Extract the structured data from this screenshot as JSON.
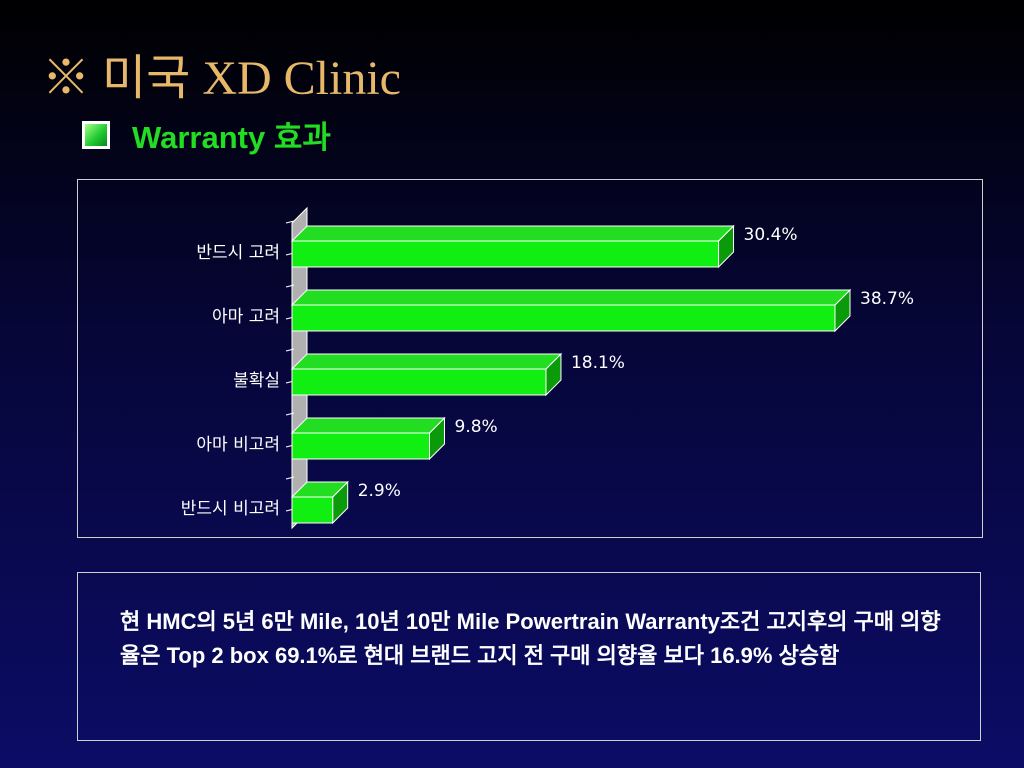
{
  "header": {
    "title": "※ 미국 XD Clinic",
    "subtitle": "Warranty 효과"
  },
  "chart_data": {
    "type": "bar",
    "orientation": "horizontal",
    "categories": [
      "반드시 고려",
      "아마 고려",
      "불확실",
      "아마 비고려",
      "반드시 비고려"
    ],
    "values": [
      30.4,
      38.7,
      18.1,
      9.8,
      2.9
    ],
    "value_labels": [
      "30.4%",
      "38.7%",
      "18.1%",
      "9.8%",
      "2.9%"
    ],
    "xlim": [
      0,
      40
    ],
    "grid": false,
    "style": "3d",
    "colors": {
      "bar": "#11ee11",
      "bar_top": "#22dd22",
      "bar_side": "#0a9a0a",
      "axis_wall": "#b0b0b0"
    }
  },
  "note": {
    "text": "현 HMC의 5년 6만 Mile, 10년 10만 Mile Powertrain Warranty조건 고지후의 구매 의향율은 Top 2 box 69.1%로  현대 브랜드 고지 전 구매 의향율 보다 16.9% 상승함"
  }
}
